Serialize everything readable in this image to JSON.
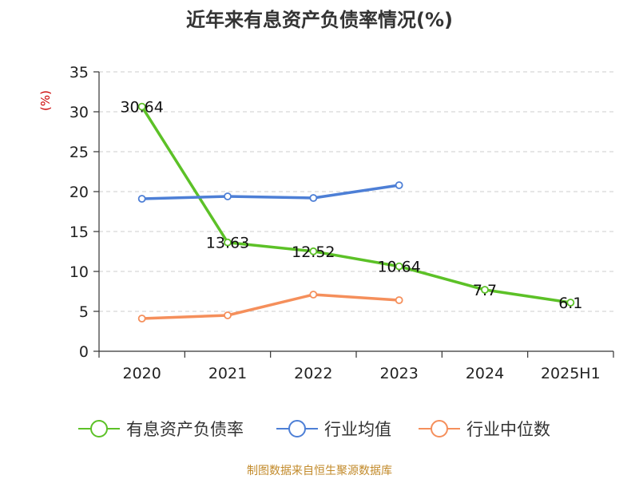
{
  "chart_data": {
    "type": "line",
    "title": "近年来有息资产负债率情况(%)",
    "xlabel": "",
    "ylabel": "(%)",
    "categories": [
      "2020",
      "2021",
      "2022",
      "2023",
      "2024",
      "2025H1"
    ],
    "ylim": [
      0,
      35
    ],
    "yticks": [
      0,
      5,
      10,
      15,
      20,
      25,
      30,
      35
    ],
    "grid": true,
    "legend_position": "bottom",
    "series": [
      {
        "name": "有息资产负债率",
        "color": "#5cc127",
        "values": [
          30.64,
          13.63,
          12.52,
          10.64,
          7.7,
          6.1
        ],
        "labels": [
          "30.64",
          "13.63",
          "12.52",
          "10.64",
          "7.7",
          "6.1"
        ],
        "show_labels": true
      },
      {
        "name": "行业均值",
        "color": "#4d7fd6",
        "values": [
          19.1,
          19.4,
          19.2,
          20.8,
          null,
          null
        ],
        "show_labels": false
      },
      {
        "name": "行业中位数",
        "color": "#f58f5b",
        "values": [
          4.1,
          4.5,
          7.1,
          6.4,
          null,
          null
        ],
        "show_labels": false
      }
    ]
  },
  "footer": {
    "source": "制图数据来自恒生聚源数据库"
  }
}
